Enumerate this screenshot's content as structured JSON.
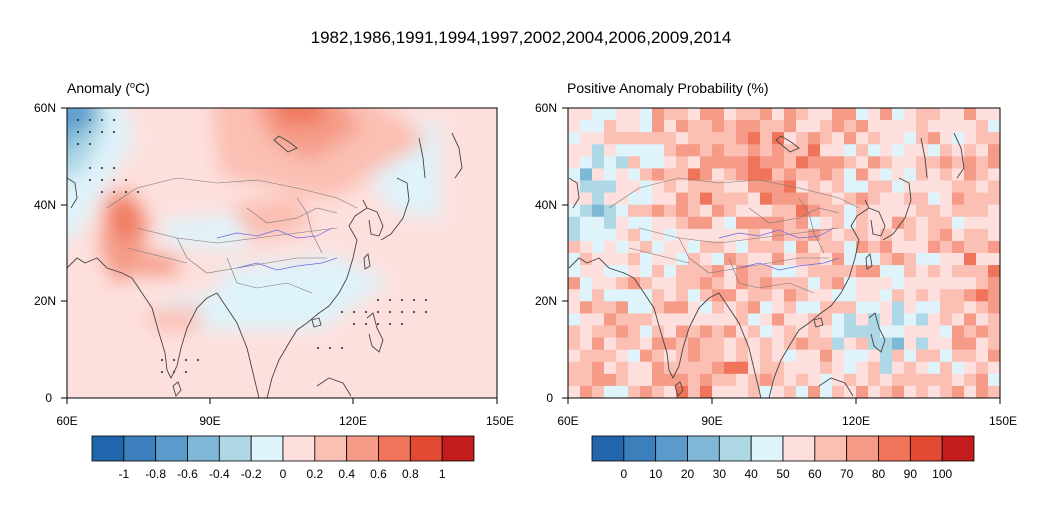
{
  "figure_title": "1982,1986,1991,1994,1997,2002,2004,2006,2009,2014",
  "map_extent": {
    "lon": [
      60,
      150
    ],
    "lat": [
      0,
      60
    ]
  },
  "panels": [
    {
      "id": "anomaly",
      "title_prefix": "Anomaly (",
      "title_sup": "o",
      "title_suffix": "C)",
      "field_type": "smooth-contour",
      "x_ticks": [
        "60E",
        "90E",
        "120E",
        "150E"
      ],
      "y_ticks": [
        "60N",
        "40N",
        "20N",
        "0"
      ],
      "colorbar": {
        "colors": [
          "#2166ac",
          "#3b80bd",
          "#5a9bcc",
          "#7fb8d6",
          "#aed8e6",
          "#dff3fa",
          "#fde0dd",
          "#fbbfb3",
          "#f59b88",
          "#ef7459",
          "#e34a33",
          "#c41c1c"
        ],
        "labels": [
          "-1",
          "-0.8",
          "-0.6",
          "-0.4",
          "-0.2",
          "0",
          "0.2",
          "0.4",
          "0.6",
          "0.8",
          "1"
        ]
      }
    },
    {
      "id": "probability",
      "title_prefix": "Positive Anomaly Probability (%)",
      "title_sup": "",
      "title_suffix": "",
      "field_type": "gridded-cells",
      "x_ticks": [
        "60E",
        "90E",
        "120E",
        "150E"
      ],
      "y_ticks": [
        "60N",
        "40N",
        "20N",
        "0"
      ],
      "colorbar": {
        "colors": [
          "#2166ac",
          "#3b80bd",
          "#5a9bcc",
          "#7fb8d6",
          "#aed8e6",
          "#dff3fa",
          "#fde0dd",
          "#fbbfb3",
          "#f59b88",
          "#ef7459",
          "#e34a33",
          "#c41c1c"
        ],
        "labels": [
          "0",
          "10",
          "20",
          "30",
          "40",
          "50",
          "60",
          "70",
          "80",
          "90",
          "100"
        ]
      }
    }
  ]
}
